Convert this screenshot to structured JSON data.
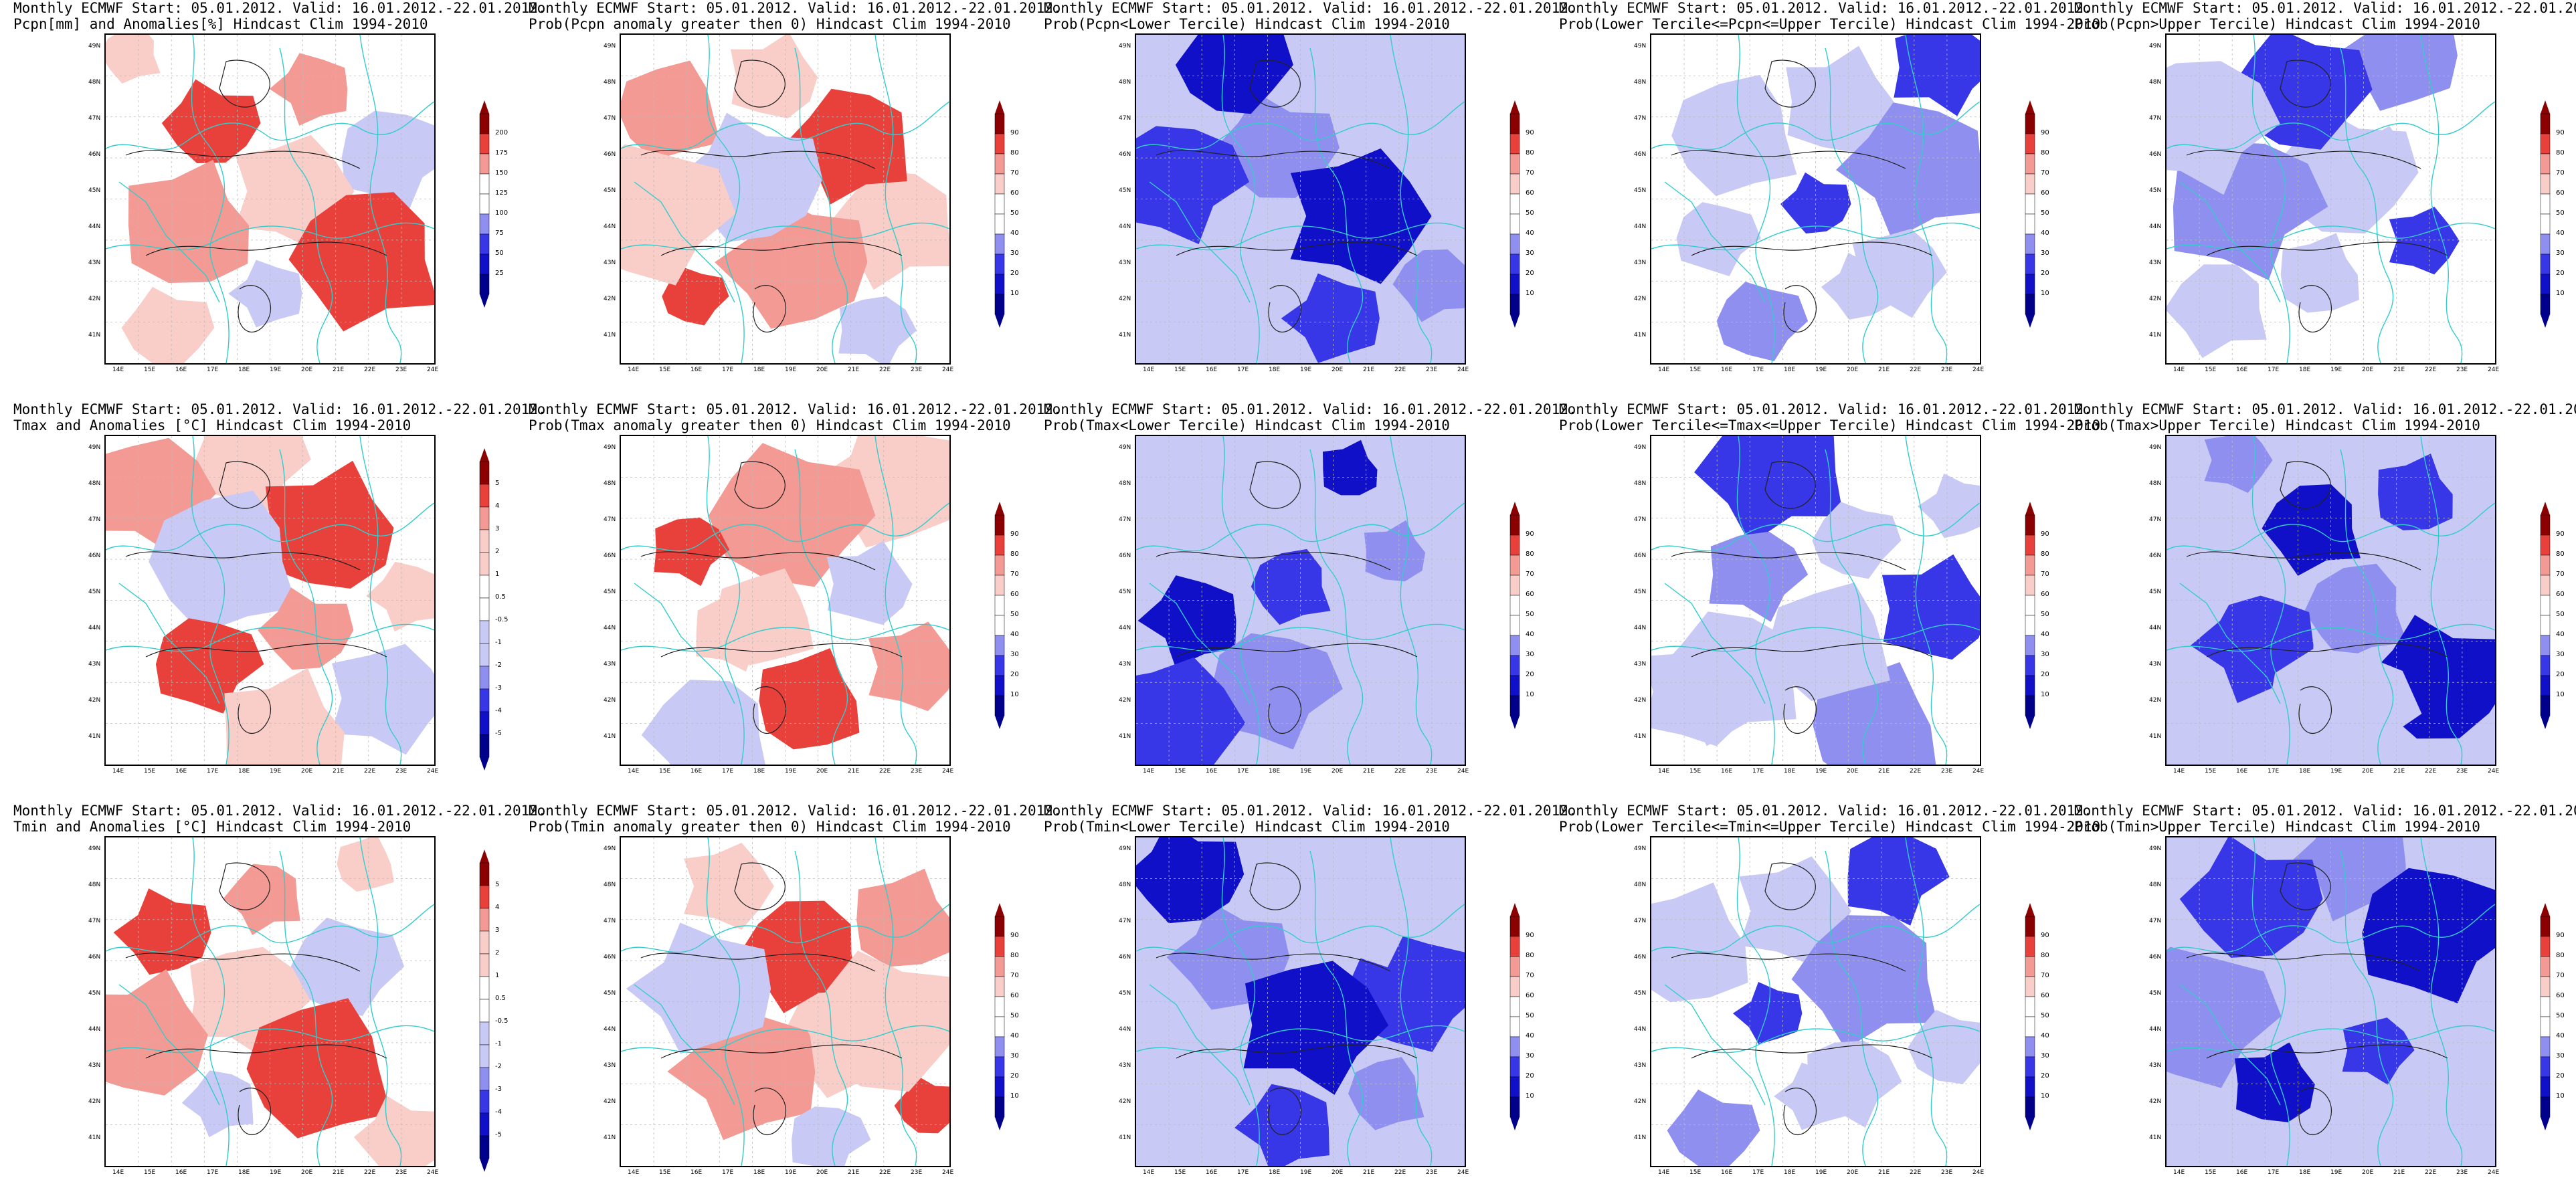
{
  "header_line": "Monthly ECMWF Start: 05.01.2012. Valid: 16.01.2012.-22.01.2012.",
  "panels": [
    {
      "title2": "Pcpn[mm] and Anomalies[%] Hindcast Clim 1994-2010",
      "scale": "anomaly_pcp",
      "style": "red"
    },
    {
      "title2": "Prob(Pcpn anomaly greater then 0) Hindcast Clim 1994-2010",
      "scale": "prob",
      "style": "red"
    },
    {
      "title2": "Prob(Pcpn<Lower Tercile) Hindcast Clim 1994-2010",
      "scale": "prob",
      "style": "deepblue"
    },
    {
      "title2": "Prob(Lower Tercile<=Pcpn<=Upper Tercile) Hindcast Clim 1994-2010",
      "scale": "prob",
      "style": "blue"
    },
    {
      "title2": "Prob(Pcpn>Upper Tercile) Hindcast Clim 1994-2010",
      "scale": "prob",
      "style": "blue"
    },
    {
      "title2": "Tmax and Anomalies [°C] Hindcast Clim 1994-2010",
      "scale": "anomaly_t",
      "style": "red"
    },
    {
      "title2": "Prob(Tmax anomaly greater then 0) Hindcast Clim 1994-2010",
      "scale": "prob",
      "style": "red"
    },
    {
      "title2": "Prob(Tmax<Lower Tercile) Hindcast Clim 1994-2010",
      "scale": "prob",
      "style": "deepblue"
    },
    {
      "title2": "Prob(Lower Tercile<=Tmax<=Upper Tercile) Hindcast Clim 1994-2010",
      "scale": "prob",
      "style": "blue"
    },
    {
      "title2": "Prob(Tmax>Upper Tercile) Hindcast Clim 1994-2010",
      "scale": "prob",
      "style": "deepblue"
    },
    {
      "title2": "Tmin and Anomalies [°C] Hindcast Clim 1994-2010",
      "scale": "anomaly_t",
      "style": "red"
    },
    {
      "title2": "Prob(Tmin anomaly greater then 0) Hindcast Clim 1994-2010",
      "scale": "prob",
      "style": "red"
    },
    {
      "title2": "Prob(Tmin<Lower Tercile) Hindcast Clim 1994-2010",
      "scale": "prob",
      "style": "deepblue"
    },
    {
      "title2": "Prob(Lower Tercile<=Tmin<=Upper Tercile) Hindcast Clim 1994-2010",
      "scale": "prob",
      "style": "blue"
    },
    {
      "title2": "Prob(Tmin>Upper Tercile) Hindcast Clim 1994-2010",
      "scale": "prob",
      "style": "deepblue"
    }
  ],
  "lat_labels": [
    "49N",
    "48N",
    "47N",
    "46N",
    "45N",
    "44N",
    "43N",
    "42N",
    "41N"
  ],
  "lon_labels": [
    "14E",
    "15E",
    "16E",
    "17E",
    "18E",
    "19E",
    "20E",
    "21E",
    "22E",
    "23E",
    "24E"
  ],
  "scales": {
    "anomaly_pcp": [
      "200",
      "175",
      "150",
      "125",
      "100",
      "75",
      "50",
      "25"
    ],
    "anomaly_t": [
      "5",
      "4",
      "3",
      "2",
      "1",
      "0.5",
      "-0.5",
      "-1",
      "-2",
      "-3",
      "-4",
      "-5"
    ],
    "prob": [
      "90",
      "80",
      "70",
      "60",
      "50",
      "40",
      "30",
      "20",
      "10"
    ]
  },
  "colors": {
    "red_strong": "#e8403a",
    "red_mid": "#f29a93",
    "red_light": "#f9cdc8",
    "blue_light": "#c9c9f5",
    "blue_mid": "#8f8fef",
    "blue_strong": "#3737e8",
    "blue_deep": "#1010c8",
    "border": "#33cccc"
  }
}
